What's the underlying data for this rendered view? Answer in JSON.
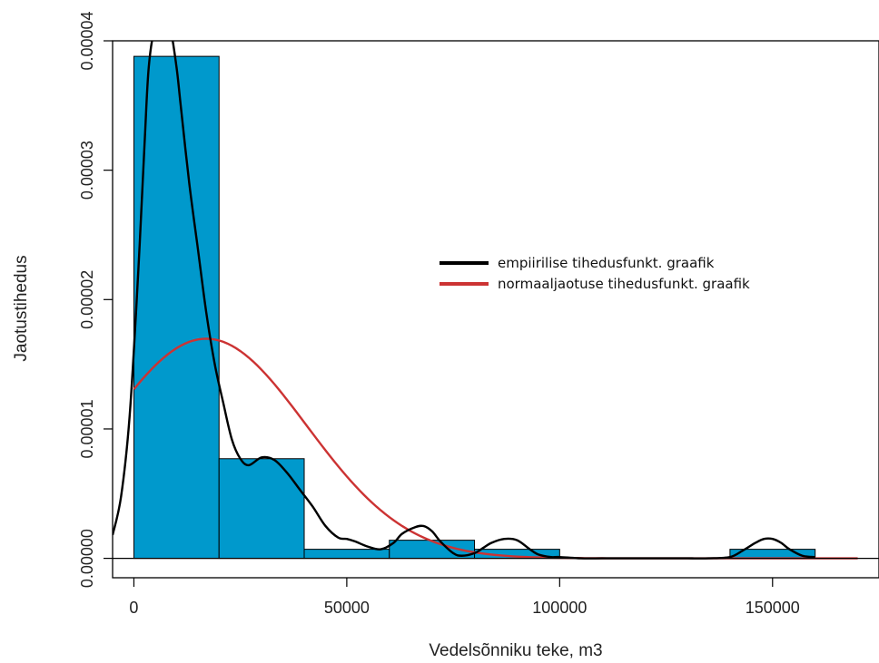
{
  "chart_data": {
    "type": "histogram",
    "xlabel": "Vedelsõnniku teke, m3",
    "ylabel": "Jaotustihedus",
    "xlim": [
      -5000,
      175000
    ],
    "ylim": [
      -1.5e-06,
      4e-05
    ],
    "x_ticks": [
      {
        "value": 0,
        "label": "0"
      },
      {
        "value": 50000,
        "label": "50000"
      },
      {
        "value": 100000,
        "label": "100000"
      },
      {
        "value": 150000,
        "label": "150000"
      }
    ],
    "y_ticks": [
      {
        "value": 0,
        "label": "0.00000"
      },
      {
        "value": 1e-05,
        "label": "0.00001"
      },
      {
        "value": 2e-05,
        "label": "0.00002"
      },
      {
        "value": 3e-05,
        "label": "0.00003"
      },
      {
        "value": 4e-05,
        "label": "0.00004"
      }
    ],
    "grid": false,
    "bar_color": "#0099cc",
    "bins": [
      {
        "start": 0,
        "end": 20000,
        "density": 3.88e-05
      },
      {
        "start": 20000,
        "end": 40000,
        "density": 7.7e-06
      },
      {
        "start": 40000,
        "end": 60000,
        "density": 7e-07
      },
      {
        "start": 60000,
        "end": 80000,
        "density": 1.4e-06
      },
      {
        "start": 80000,
        "end": 100000,
        "density": 7e-07
      },
      {
        "start": 100000,
        "end": 120000,
        "density": 0
      },
      {
        "start": 120000,
        "end": 140000,
        "density": 0
      },
      {
        "start": 140000,
        "end": 160000,
        "density": 7e-07
      }
    ],
    "legend_position": "center-right",
    "series": [
      {
        "name": "empiirilise tihedusfunkt. graafik",
        "type": "line",
        "color": "#000000",
        "x": [
          -5000,
          -3000,
          -1000,
          1000,
          2500,
          3500,
          5000,
          7000,
          8500,
          10000,
          11000,
          13000,
          15000,
          17000,
          19000,
          21000,
          23000,
          25000,
          27000,
          30000,
          33000,
          36000,
          39000,
          42000,
          45000,
          48000,
          50000,
          52000,
          55000,
          58000,
          61000,
          63000,
          66000,
          68000,
          70000,
          72000,
          75000,
          77000,
          80000,
          82000,
          84000,
          87000,
          90000,
          93000,
          95000,
          98000,
          100000,
          105000,
          110000,
          115000,
          120000,
          125000,
          130000,
          135000,
          140000,
          143000,
          146000,
          148000,
          150000,
          152000,
          154000,
          157000,
          160000
        ],
        "y": [
          1.8e-06,
          4.8e-06,
          1.1e-05,
          2.2e-05,
          3.2e-05,
          3.8e-05,
          4.1e-05,
          4.1e-05,
          4.1e-05,
          3.8e-05,
          3.5e-05,
          2.9e-05,
          2.4e-05,
          1.9e-05,
          1.5e-05,
          1.2e-05,
          9.2e-06,
          7.7e-06,
          7.2e-06,
          7.8e-06,
          7.6e-06,
          6.6e-06,
          5.3e-06,
          4e-06,
          2.5e-06,
          1.6e-06,
          1.5e-06,
          1.3e-06,
          9e-07,
          7e-07,
          1.2e-06,
          1.9e-06,
          2.4e-06,
          2.5e-06,
          2.1e-06,
          1.3e-06,
          4e-07,
          2e-07,
          4e-07,
          8e-07,
          1.2e-06,
          1.5e-06,
          1.4e-06,
          7e-07,
          3e-07,
          1e-07,
          1e-07,
          0,
          0,
          0,
          0,
          0,
          0,
          0,
          1e-07,
          6e-07,
          1.2e-06,
          1.5e-06,
          1.5e-06,
          1.2e-06,
          7e-07,
          2e-07,
          1e-07
        ]
      },
      {
        "name": "normaaljaotuse tihedusfunkt. graafik",
        "type": "line",
        "color": "#cc3333",
        "normal": {
          "mean": 17000,
          "sd": 23500
        }
      }
    ]
  }
}
